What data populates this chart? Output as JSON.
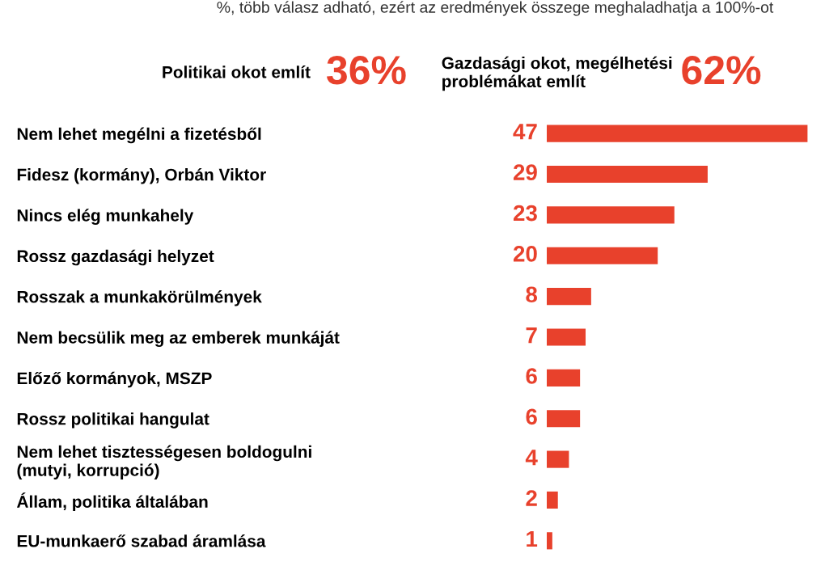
{
  "chart_data": {
    "type": "bar",
    "orientation": "horizontal",
    "data_labels": true,
    "grid": false,
    "legend": false,
    "categories": [
      "Nem lehet megélni a fizetésből",
      "Fidesz (kormány), Orbán Viktor",
      "Nincs elég munkahely",
      "Rossz gazdasági helyzet",
      "Rosszak a munkakörülmények",
      "Nem becsülik meg az emberek munkáját",
      "Előző kormányok, MSZP",
      "Rossz politikai hangulat",
      "Nem lehet tisztességesen boldogulni\n(mutyi, korrupció)",
      "Állam, politika általában",
      "EU-munkaerő szabad áramlása"
    ],
    "values": [
      47,
      29,
      23,
      20,
      8,
      7,
      6,
      6,
      4,
      2,
      1
    ],
    "color": "#e8412c",
    "annotations": [
      "%, több válasz adható, ezért az eredmények összege meghaladhatja a 100%-ot",
      "Politikai okot említ",
      "36%",
      "Gazdasági okot, megélhetési\nproblémákat említ",
      "62%"
    ]
  }
}
